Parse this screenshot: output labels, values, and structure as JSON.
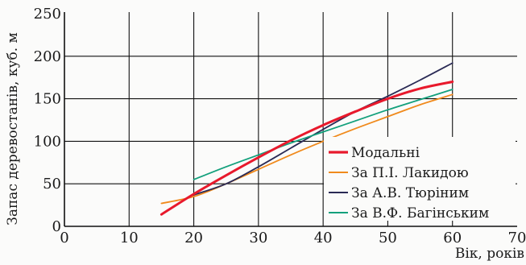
{
  "chart_data": {
    "type": "line",
    "title": "",
    "xlabel": "Вік, років",
    "ylabel": "Запас деревостанів, куб. м",
    "xlim": [
      0,
      70
    ],
    "ylim": [
      0,
      250
    ],
    "x_ticks": [
      "0",
      "10",
      "20",
      "30",
      "40",
      "50",
      "60",
      "70"
    ],
    "y_ticks": [
      "0",
      "50",
      "100",
      "150",
      "200",
      "250"
    ],
    "grid": true,
    "legend_position": "bottom-right",
    "series": [
      {
        "name": "Модальні",
        "color": "#e8192c",
        "x": [
          15,
          20,
          25,
          30,
          35,
          40,
          45,
          50,
          55,
          60
        ],
        "y": [
          14,
          38,
          60,
          81,
          101,
          119,
          135,
          150,
          162,
          170
        ]
      },
      {
        "name": "За П.І. Лакидою",
        "color": "#f08a1c",
        "x": [
          15,
          20,
          25,
          30,
          35,
          40,
          45,
          50,
          55,
          60
        ],
        "y": [
          27,
          35,
          50,
          67,
          84,
          100,
          115,
          129,
          143,
          155
        ]
      },
      {
        "name": "За А.В. Тюріним",
        "color": "#2a2a55",
        "x": [
          20,
          25,
          30,
          35,
          40,
          45,
          50,
          55,
          60
        ],
        "y": [
          37,
          50,
          70,
          92,
          114,
          135,
          153,
          172,
          192
        ]
      },
      {
        "name": "За В.Ф. Багінським",
        "color": "#13a07c",
        "x": [
          20,
          25,
          30,
          35,
          40,
          45,
          50,
          55,
          60
        ],
        "y": [
          55,
          70,
          84,
          98,
          111,
          124,
          137,
          149,
          161
        ]
      }
    ]
  }
}
